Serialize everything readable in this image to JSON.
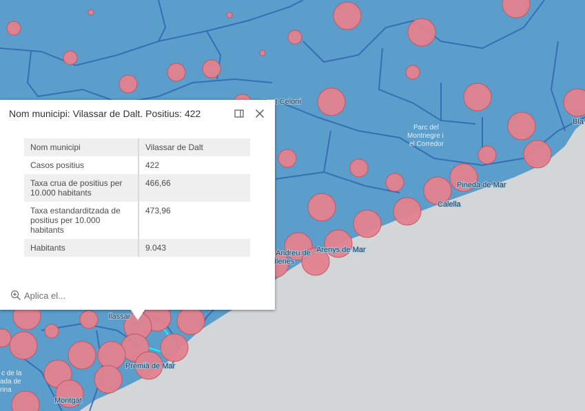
{
  "map": {
    "place_labels": [
      "Sant Celoni",
      "Pineda de Mar",
      "Calella",
      "Arenys de Mar",
      "Premià de Mar",
      "Montgat",
      "Bla",
      "Ilassar",
      "Andreu de",
      "Ilenes"
    ],
    "park_labels": [
      "Parc del",
      "Montnegre i",
      "el Corredor"
    ],
    "park_labels_left": [
      "c de la",
      "ada de",
      "rina"
    ],
    "colors": {
      "sea": "#d3d6d7",
      "land": "#5b9dcb",
      "borders": "#2f66b0",
      "circles": "#e38290",
      "circle_stroke": "#c7525f",
      "highlight": "#00ffff"
    }
  },
  "popup": {
    "title": "Nom municipi: Vilassar de Dalt. Positius: 422",
    "dock_icon": "dock-icon",
    "close_icon": "close-icon",
    "rows": [
      {
        "label": "Nom municipi",
        "value": "Vilassar de Dalt"
      },
      {
        "label": "Casos positius",
        "value": "422"
      },
      {
        "label": "Taxa crua de positius per 10.000 habitants",
        "value": "466,66"
      },
      {
        "label": "Taxa estandarditzada de positius per 10.000 habitants",
        "value": "473,96"
      },
      {
        "label": "Habitants",
        "value": "9.043"
      }
    ],
    "action_label": "Aplica el..."
  }
}
